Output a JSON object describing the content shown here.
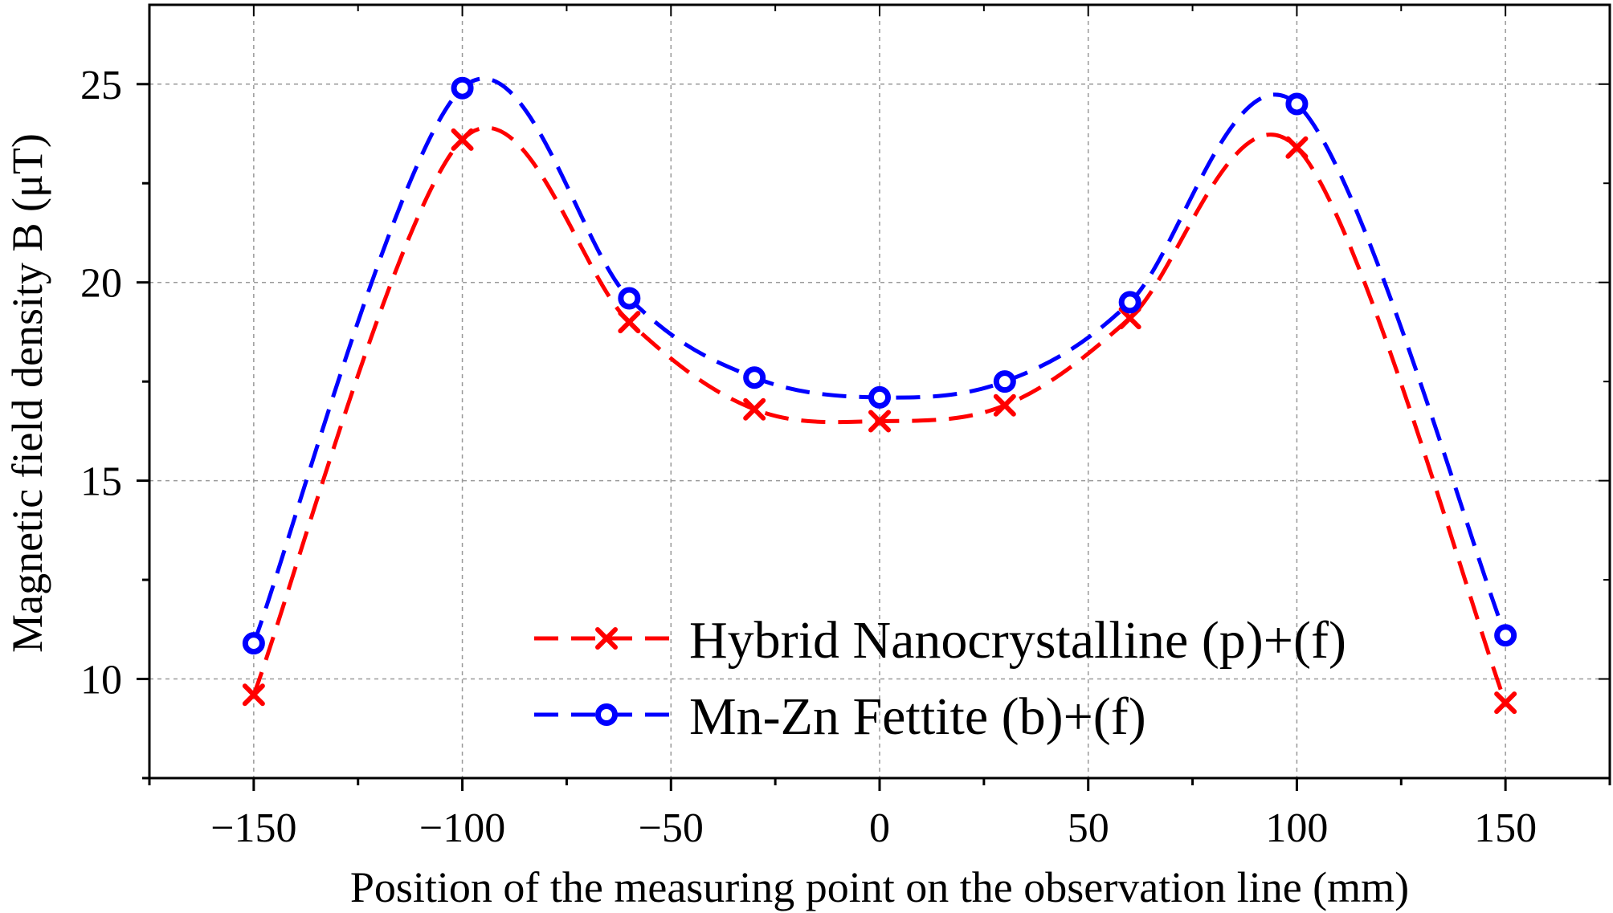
{
  "chart_data": {
    "type": "line",
    "title": "",
    "xlabel": "Position of the measuring point on the observation line (mm)",
    "ylabel": "Magnetic field density B (μT)",
    "xlim": [
      -175,
      175
    ],
    "ylim": [
      7.5,
      27
    ],
    "xticks": [
      -150,
      -100,
      -50,
      0,
      50,
      100,
      150
    ],
    "yticks": [
      10,
      15,
      20,
      25
    ],
    "xtick_labels": [
      "−150",
      "−100",
      "−50",
      "0",
      "50",
      "100",
      "150"
    ],
    "ytick_labels": [
      "10",
      "15",
      "20",
      "25"
    ],
    "grid": true,
    "legend_position": "bottom-right",
    "series": [
      {
        "name": "Hybrid Nanocrystalline (p)+(f)",
        "color": "#ff0000",
        "marker": "x",
        "line_style": "dashed",
        "x": [
          -150,
          -100,
          -60,
          -30,
          0,
          30,
          60,
          100,
          150
        ],
        "values": [
          9.6,
          23.6,
          19.0,
          16.8,
          16.5,
          16.9,
          19.1,
          23.4,
          9.4
        ]
      },
      {
        "name": "Mn-Zn Fettite (b)+(f)",
        "color": "#0000ff",
        "marker": "o",
        "line_style": "dashed",
        "x": [
          -150,
          -100,
          -60,
          -30,
          0,
          30,
          60,
          100,
          150
        ],
        "values": [
          10.9,
          24.9,
          19.6,
          17.6,
          17.1,
          17.5,
          19.5,
          24.5,
          11.1
        ]
      }
    ]
  }
}
